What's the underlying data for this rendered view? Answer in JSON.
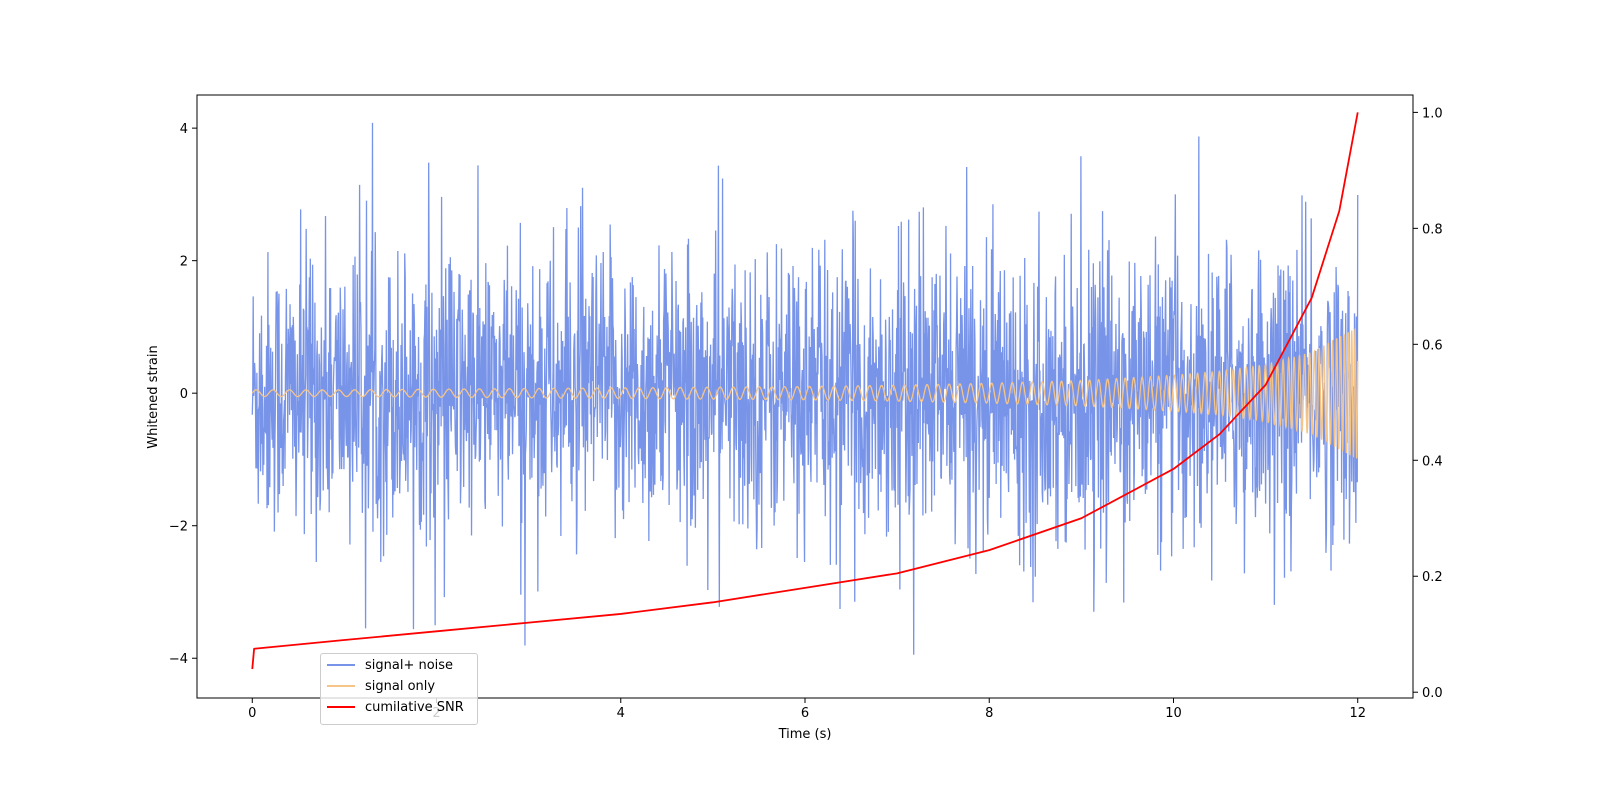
{
  "chart_data": {
    "type": "line",
    "title": "",
    "xlabel": "Time (s)",
    "ylabel": "Whitened strain",
    "y2label": "",
    "xlim": [
      -0.6,
      12.6
    ],
    "ylim": [
      -4.6,
      4.5
    ],
    "y2lim": [
      -0.01,
      1.03
    ],
    "x_ticks": [
      "0",
      "2",
      "4",
      "6",
      "8",
      "10",
      "12"
    ],
    "y_ticks": [
      "−4",
      "−2",
      "0",
      "2",
      "4"
    ],
    "y2_ticks": [
      "0.0",
      "0.2",
      "0.4",
      "0.6",
      "0.8",
      "1.0"
    ],
    "grid": false,
    "legend_position": "lower-left",
    "series": [
      {
        "name": "signal+ noise",
        "axis": "left",
        "color": "#7894e8",
        "description_values": {
          "t_start": 0,
          "t_end": 12,
          "typical_range": [
            -2.5,
            2.5
          ],
          "peak_max": 4.08,
          "peak_min": -4.15
        }
      },
      {
        "name": "signal only",
        "axis": "left",
        "color": "#f5c488",
        "x": [
          0,
          1,
          2,
          3,
          4,
          5,
          6,
          7,
          8,
          9,
          10,
          10.5,
          11,
          11.5,
          11.8,
          12
        ],
        "envelope": [
          0.05,
          0.05,
          0.06,
          0.07,
          0.08,
          0.09,
          0.1,
          0.12,
          0.15,
          0.19,
          0.27,
          0.33,
          0.43,
          0.62,
          0.85,
          1.0
        ]
      },
      {
        "name": "cumilative SNR",
        "axis": "right",
        "color": "#ff0000",
        "x": [
          0,
          0.02,
          1,
          2,
          3,
          4,
          5,
          6,
          7,
          8,
          9,
          10,
          10.5,
          11,
          11.5,
          11.8,
          12
        ],
        "values": [
          0.04,
          0.075,
          0.09,
          0.105,
          0.12,
          0.135,
          0.155,
          0.18,
          0.205,
          0.245,
          0.3,
          0.385,
          0.445,
          0.53,
          0.68,
          0.83,
          1.0
        ]
      }
    ]
  }
}
